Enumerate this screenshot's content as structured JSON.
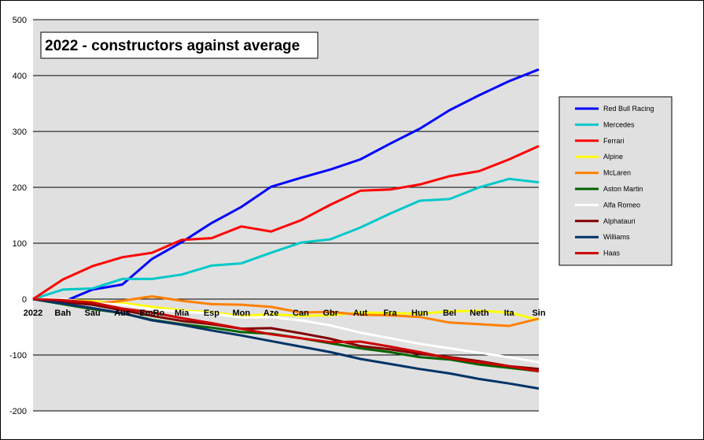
{
  "chart_data": {
    "type": "line",
    "title": "2022 - constructors against average",
    "xlabel": "",
    "ylabel": "",
    "ylim": [
      -200,
      500
    ],
    "yticks": [
      -200,
      -100,
      0,
      100,
      200,
      300,
      400,
      500
    ],
    "grid": true,
    "legend_position": "right",
    "plot_background": "#e0e0e0",
    "categories": [
      "2022",
      "Bah",
      "Sau",
      "Aus",
      "EmRo",
      "Mia",
      "Esp",
      "Mon",
      "Aze",
      "Can",
      "Gbr",
      "Aut",
      "Fra",
      "Hun",
      "Bel",
      "Neth",
      "Ita",
      "Sin"
    ],
    "series": [
      {
        "name": "Red Bull Racing",
        "color": "#0000ff",
        "values": [
          0,
          -5,
          17,
          26,
          72,
          102,
          136,
          165,
          201,
          217,
          232,
          250,
          278,
          305,
          338,
          365,
          390,
          411
        ]
      },
      {
        "name": "Mercedes",
        "color": "#00c8c8",
        "values": [
          0,
          17,
          19,
          36,
          36,
          44,
          60,
          64,
          83,
          101,
          107,
          128,
          153,
          176,
          179,
          200,
          215,
          209
        ]
      },
      {
        "name": "Ferrari",
        "color": "#ff0000",
        "values": [
          0,
          35,
          59,
          75,
          83,
          106,
          109,
          130,
          121,
          141,
          169,
          194,
          196,
          205,
          220,
          229,
          250,
          274
        ]
      },
      {
        "name": "Alpine",
        "color": "#ffff00",
        "values": [
          0,
          -1,
          -4,
          -7,
          -14,
          -20,
          -24,
          -30,
          -27,
          -30,
          -29,
          -24,
          -25,
          -26,
          -22,
          -21,
          -24,
          -37
        ]
      },
      {
        "name": "McLaren",
        "color": "#ff8000",
        "values": [
          0,
          -5,
          -9,
          -3,
          5,
          -3,
          -9,
          -10,
          -14,
          -24,
          -23,
          -28,
          -29,
          -32,
          -42,
          -45,
          -48,
          -35
        ]
      },
      {
        "name": "Aston Martin",
        "color": "#006400",
        "values": [
          0,
          -9,
          -18,
          -25,
          -37,
          -45,
          -51,
          -59,
          -62,
          -70,
          -79,
          -88,
          -95,
          -104,
          -108,
          -117,
          -123,
          -129
        ]
      },
      {
        "name": "Alfa Romeo",
        "color": "#ffffff",
        "values": [
          0,
          0,
          -7,
          -10,
          -18,
          -22,
          -26,
          -33,
          -32,
          -38,
          -47,
          -60,
          -70,
          -80,
          -88,
          -96,
          -104,
          -113
        ]
      },
      {
        "name": "Alphatauri",
        "color": "#800000",
        "values": [
          0,
          -5,
          -10,
          -20,
          -30,
          -39,
          -45,
          -53,
          -52,
          -61,
          -71,
          -84,
          -90,
          -98,
          -104,
          -111,
          -120,
          -125
        ]
      },
      {
        "name": "Williams",
        "color": "#003366",
        "values": [
          0,
          -8,
          -16,
          -25,
          -38,
          -46,
          -56,
          -65,
          -75,
          -85,
          -95,
          -107,
          -116,
          -125,
          -133,
          -143,
          -151,
          -160
        ]
      },
      {
        "name": "Haas",
        "color": "#cc0000",
        "values": [
          0,
          -2,
          -6,
          -17,
          -24,
          -34,
          -43,
          -53,
          -63,
          -70,
          -77,
          -76,
          -85,
          -95,
          -106,
          -113,
          -120,
          -129
        ]
      }
    ]
  }
}
